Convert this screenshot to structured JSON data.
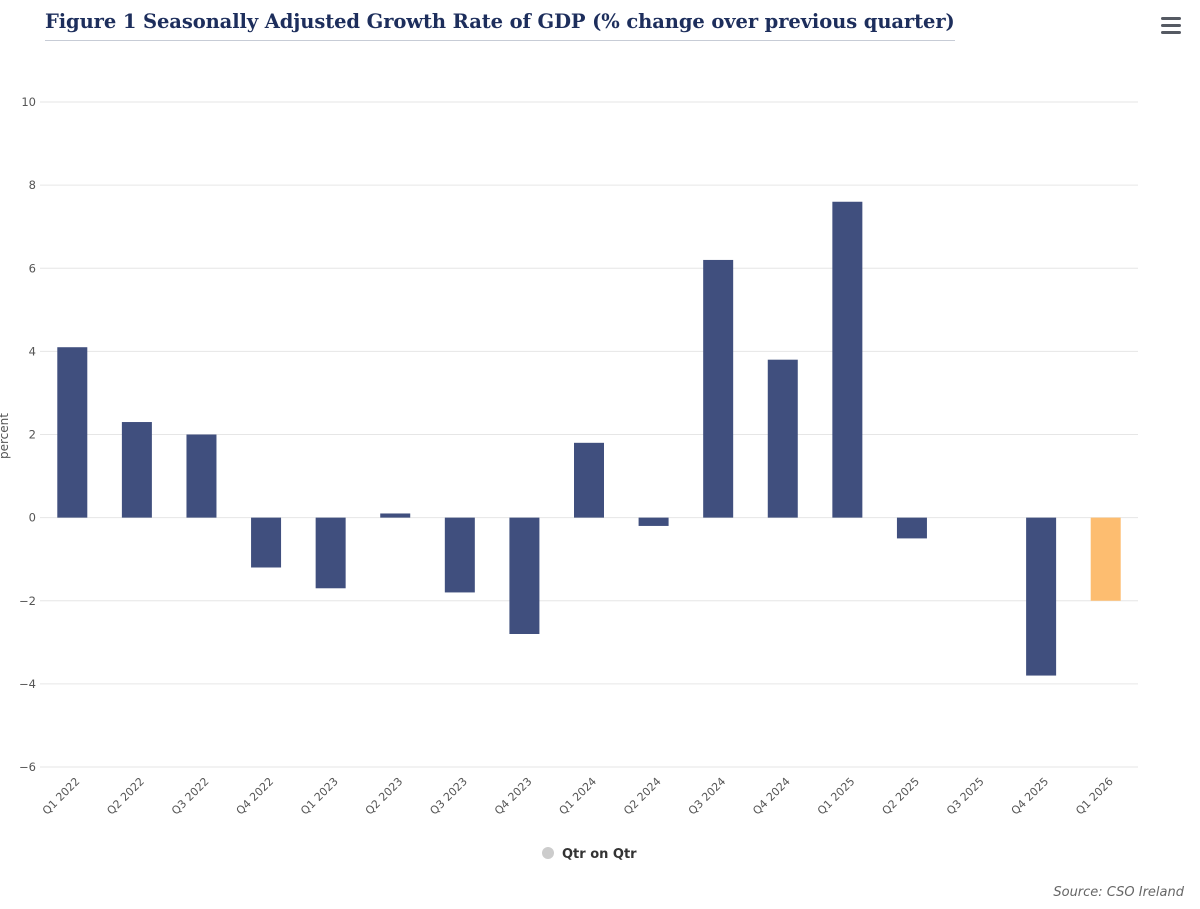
{
  "chart_data": {
    "type": "bar",
    "title": "Figure 1 Seasonally Adjusted Growth Rate of GDP (% change over previous quarter)",
    "xlabel": "",
    "ylabel": "percent",
    "ylim": [
      -6,
      10
    ],
    "yticks": [
      -6,
      -4,
      -2,
      0,
      2,
      4,
      6,
      8,
      10
    ],
    "grid": true,
    "categories": [
      "Q1 2022",
      "Q2 2022",
      "Q3 2022",
      "Q4 2022",
      "Q1 2023",
      "Q2 2023",
      "Q3 2023",
      "Q4 2023",
      "Q1 2024",
      "Q2 2024",
      "Q3 2024",
      "Q4 2024",
      "Q1 2025",
      "Q2 2025",
      "Q3 2025",
      "Q4 2025",
      "Q1 2026"
    ],
    "series": [
      {
        "name": "Qtr on Qtr",
        "values": [
          4.1,
          2.3,
          2.0,
          -1.2,
          -1.7,
          0.1,
          -1.8,
          -2.8,
          1.8,
          -0.2,
          6.2,
          3.8,
          7.6,
          -0.5,
          0.0,
          -3.8,
          -2.0
        ],
        "color": "#404f7e"
      }
    ],
    "highlight": {
      "index": 16,
      "color": "#fdbd70"
    },
    "legend": {
      "position": "bottom-center",
      "marker_color": "#cccccc"
    },
    "source": "Source: CSO Ireland"
  },
  "colors": {
    "title": "#1d2e5c",
    "bar": "#404f7e",
    "highlight_bar": "#fdbd70",
    "grid": "#e6e6e6",
    "axis_text": "#555555"
  },
  "icons": {
    "menu": "hamburger-menu-icon"
  }
}
